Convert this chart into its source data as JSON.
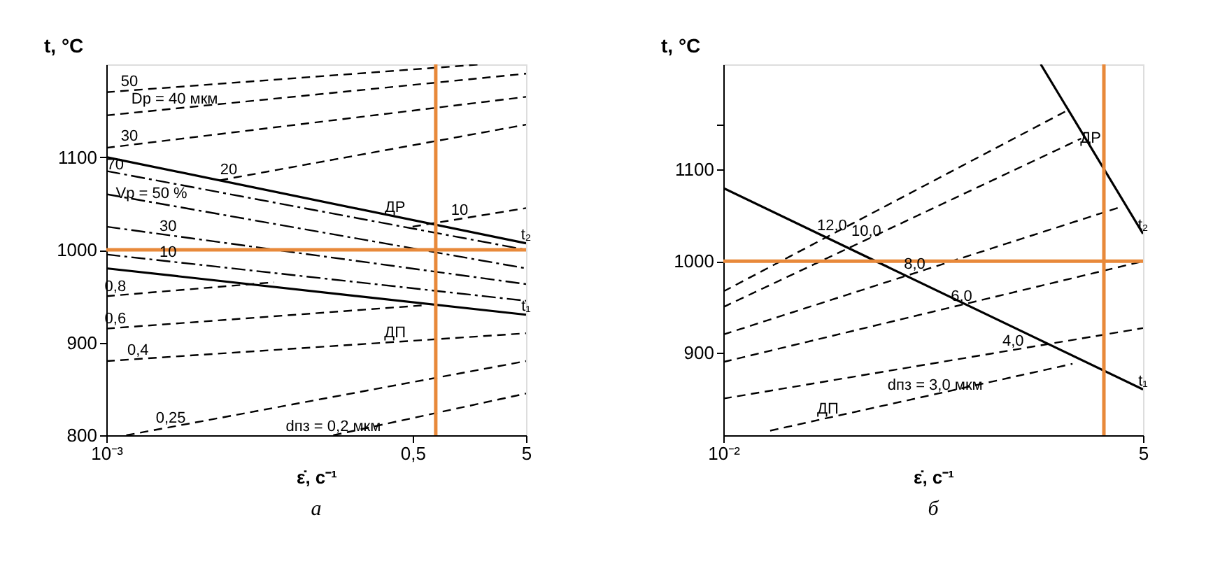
{
  "chart_data": [
    {
      "type": "line",
      "xlabel": "ε̇, с⁻¹",
      "ylabel": "t, °C",
      "log": "x",
      "grid": false,
      "xlim": [
        0.001,
        5
      ],
      "ylim": [
        800,
        1200
      ],
      "xticks": [
        {
          "value": 0.001,
          "label": "10⁻³"
        },
        {
          "value": 0.5,
          "label": "0,5"
        },
        5
      ],
      "yticks": [
        800,
        900,
        1000,
        1100
      ],
      "series": [
        {
          "color": "#000000",
          "line_style": "solid",
          "x": [
            0.001,
            5
          ],
          "values": [
            1100,
            1007
          ]
        },
        {
          "color": "#000000",
          "line_style": "solid",
          "x": [
            0.001,
            5
          ],
          "values": [
            980,
            930
          ]
        },
        {
          "color": "#000000",
          "line_style": "dotted",
          "x": [
            0.001,
            5
          ],
          "values": [
            1085,
            1000
          ]
        },
        {
          "color": "#000000",
          "line_style": "dotted",
          "x": [
            0.001,
            5
          ],
          "values": [
            1060,
            980
          ]
        },
        {
          "color": "#000000",
          "line_style": "dotted",
          "x": [
            0.001,
            5
          ],
          "values": [
            1025,
            963
          ]
        },
        {
          "color": "#000000",
          "line_style": "dotted",
          "x": [
            0.001,
            5
          ],
          "values": [
            995,
            945
          ]
        },
        {
          "color": "#000000",
          "line_style": "dashed",
          "x": [
            0.001,
            2
          ],
          "values": [
            1170,
            1200
          ]
        },
        {
          "color": "#000000",
          "line_style": "dashed",
          "x": [
            0.001,
            5
          ],
          "values": [
            1145,
            1190
          ]
        },
        {
          "color": "#000000",
          "line_style": "dashed",
          "x": [
            0.001,
            5
          ],
          "values": [
            1110,
            1165
          ]
        },
        {
          "color": "#000000",
          "line_style": "dashed",
          "x": [
            0.01,
            5
          ],
          "values": [
            1075,
            1135
          ]
        },
        {
          "color": "#000000",
          "line_style": "dashed",
          "x": [
            0.5,
            5
          ],
          "values": [
            1025,
            1045
          ]
        },
        {
          "color": "#000000",
          "line_style": "dashed",
          "x": [
            0.001,
            0.03
          ],
          "values": [
            950,
            965
          ]
        },
        {
          "color": "#000000",
          "line_style": "dashed",
          "x": [
            0.001,
            0.6
          ],
          "values": [
            915,
            940
          ]
        },
        {
          "color": "#000000",
          "line_style": "dashed",
          "x": [
            0.001,
            5
          ],
          "values": [
            880,
            910
          ]
        },
        {
          "color": "#000000",
          "line_style": "dashed",
          "x": [
            0.0015,
            5
          ],
          "values": [
            800,
            880
          ]
        },
        {
          "color": "#000000",
          "line_style": "dashed",
          "x": [
            0.1,
            5
          ],
          "values": [
            800,
            845
          ]
        }
      ],
      "ref_lines": [
        {
          "axis": "x",
          "value": 0.8,
          "color": "#e8893a"
        },
        {
          "axis": "y",
          "value": 1000,
          "color": "#e8893a"
        }
      ],
      "annotations": [
        {
          "text": "50",
          "x": 0.0016,
          "y": 1172
        },
        {
          "text": "Dр = 40 мкм",
          "x": 0.004,
          "y": 1153
        },
        {
          "text": "30",
          "x": 0.0016,
          "y": 1113
        },
        {
          "text": "20",
          "x": 0.012,
          "y": 1077
        },
        {
          "text": "10",
          "x": 1.3,
          "y": 1033
        },
        {
          "text": "ДР",
          "x": 0.35,
          "y": 1036
        },
        {
          "text": "70",
          "x": 0.0012,
          "y": 1082
        },
        {
          "text": "Vр = 50 %",
          "x": 0.0025,
          "y": 1051
        },
        {
          "text": "30",
          "x": 0.0035,
          "y": 1016
        },
        {
          "text": "10",
          "x": 0.0035,
          "y": 988
        },
        {
          "text": "0,8",
          "x": 0.0012,
          "y": 951
        },
        {
          "text": "0,6",
          "x": 0.0012,
          "y": 916
        },
        {
          "text": "0,4",
          "x": 0.0019,
          "y": 882
        },
        {
          "text": "0,25",
          "x": 0.0037,
          "y": 809
        },
        {
          "text": "dпз = 0,2 мкм",
          "x": 0.1,
          "y": 800
        },
        {
          "text": "ДП",
          "x": 0.35,
          "y": 901
        },
        {
          "text": "t₂",
          "x": 5,
          "y": 1007
        },
        {
          "text": "t₁",
          "x": 5,
          "y": 930
        },
        "а"
      ]
    },
    {
      "type": "line",
      "xlabel": "ε̇, с⁻¹",
      "ylabel": "t, °C",
      "log": "x",
      "grid": false,
      "xlim": [
        0.01,
        5
      ],
      "ylim": [
        810,
        1215
      ],
      "xticks": [
        {
          "value": 0.01,
          "label": "10⁻²"
        },
        5
      ],
      "yticks": [
        900,
        1000,
        1100,
        {
          "value": 1150,
          "label": null
        }
      ],
      "series": [
        {
          "color": "#000000",
          "line_style": "solid",
          "x": [
            0.01,
            5
          ],
          "values": [
            1080,
            860
          ]
        },
        {
          "color": "#000000",
          "line_style": "solid",
          "x": [
            1.1,
            5
          ],
          "values": [
            1215,
            1030
          ]
        },
        {
          "color": "#000000",
          "line_style": "dashed",
          "x": [
            0.01,
            1.6
          ],
          "values": [
            967,
            1164
          ]
        },
        {
          "color": "#000000",
          "line_style": "dashed",
          "x": [
            0.01,
            2.0
          ],
          "values": [
            950,
            1134
          ]
        },
        {
          "color": "#000000",
          "line_style": "dashed",
          "x": [
            0.01,
            3.7
          ],
          "values": [
            920,
            1060
          ]
        },
        {
          "color": "#000000",
          "line_style": "dashed",
          "x": [
            0.01,
            5
          ],
          "values": [
            890,
            1000
          ]
        },
        {
          "color": "#000000",
          "line_style": "dashed",
          "x": [
            0.01,
            5
          ],
          "values": [
            850,
            927
          ]
        },
        {
          "color": "#000000",
          "line_style": "dashed",
          "x": [
            0.02,
            1.76
          ],
          "values": [
            815,
            888
          ]
        }
      ],
      "ref_lines": [
        {
          "axis": "x",
          "value": 2.8,
          "color": "#e8893a"
        },
        {
          "axis": "y",
          "value": 1000,
          "color": "#e8893a"
        }
      ],
      "annotations": [
        {
          "text": "12,0",
          "x": 0.05,
          "y": 1029
        },
        {
          "text": "10,0",
          "x": 0.083,
          "y": 1023
        },
        {
          "text": "8,0",
          "x": 0.17,
          "y": 987
        },
        {
          "text": "6,0",
          "x": 0.34,
          "y": 952
        },
        {
          "text": "4,0",
          "x": 0.73,
          "y": 903
        },
        {
          "text": "dпз = 3,0 мкм",
          "x": 0.23,
          "y": 855
        },
        {
          "text": "ДП",
          "x": 0.047,
          "y": 829
        },
        {
          "text": "ДР",
          "x": 2.3,
          "y": 1125
        },
        {
          "text": "t₂",
          "x": 5,
          "y": 1030
        },
        {
          "text": "t₁",
          "x": 5,
          "y": 860
        },
        "б"
      ]
    }
  ]
}
